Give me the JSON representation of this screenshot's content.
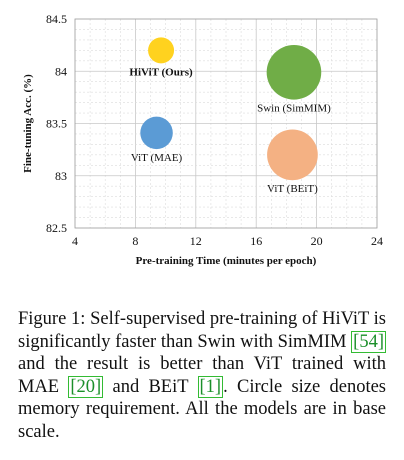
{
  "chart_data": {
    "type": "bubble",
    "xlabel": "Pre-training Time (minutes per epoch)",
    "ylabel": "Fine-tuning Acc. (%)",
    "xlim": [
      4,
      24
    ],
    "ylim": [
      82.5,
      84.5
    ],
    "xticks": [
      4,
      8,
      12,
      16,
      20,
      24
    ],
    "xtick_labels": [
      "4",
      "8",
      "12",
      "16",
      "20",
      "24"
    ],
    "yticks": [
      82.5,
      83,
      83.5,
      84,
      84.5
    ],
    "ytick_labels": [
      "82.5",
      "83",
      "83.5",
      "84",
      "84.5"
    ],
    "grid": true,
    "points": [
      {
        "label": "HiViT (Ours)",
        "x": 9.7,
        "y": 84.2,
        "size": 1.0,
        "color": "#ffd21f",
        "bold": true,
        "label_pos": "below"
      },
      {
        "label": "Swin (SimMIM)",
        "x": 18.5,
        "y": 83.99,
        "size": 2.1,
        "color": "#70ad47",
        "bold": false,
        "label_pos": "below"
      },
      {
        "label": "ViT (MAE)",
        "x": 9.4,
        "y": 83.41,
        "size": 1.25,
        "color": "#5b9bd5",
        "bold": false,
        "label_pos": "below"
      },
      {
        "label": "ViT (BEiT)",
        "x": 18.4,
        "y": 83.2,
        "size": 1.95,
        "color": "#f4b183",
        "bold": false,
        "label_pos": "below"
      }
    ]
  },
  "caption": {
    "prefix": "Figure 1:   Self-supervised pre-training of HiViT is significantly faster than Swin with SimMIM ",
    "ref1": "[54]",
    "mid1": " and the result is better than ViT trained with MAE ",
    "ref2": "[20]",
    "mid2": " and BEiT ",
    "ref3": "[1]",
    "suffix": ". Circle size denotes memory requirement.  All the models are in base scale."
  }
}
